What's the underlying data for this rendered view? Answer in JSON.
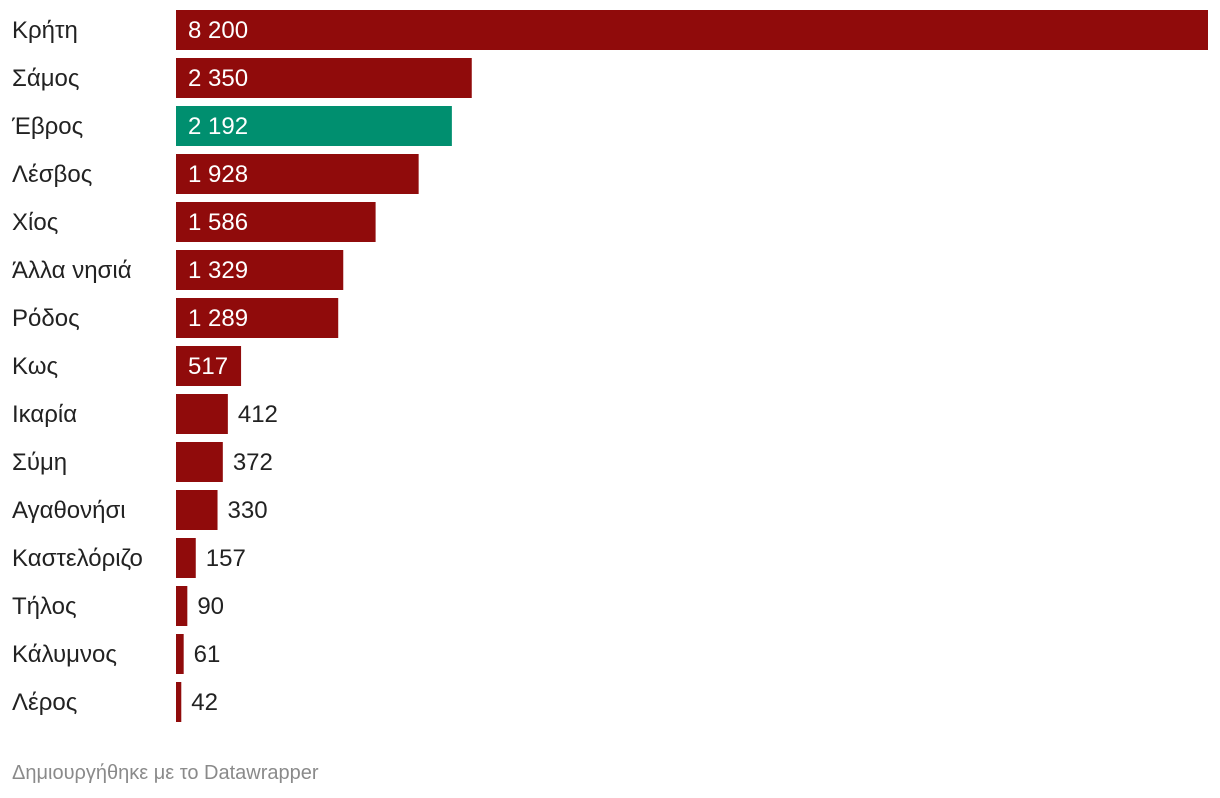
{
  "chart_data": {
    "type": "bar",
    "orientation": "horizontal",
    "categories": [
      "Κρήτη",
      "Σάμος",
      "Έβρος",
      "Λέσβος",
      "Χίος",
      "Άλλα νησιά",
      "Ρόδος",
      "Κως",
      "Ικαρία",
      "Σύμη",
      "Αγαθονήσι",
      "Καστελόριζο",
      "Τήλος",
      "Κάλυμνος",
      "Λέρος"
    ],
    "values": [
      8200,
      2350,
      2192,
      1928,
      1586,
      1329,
      1289,
      517,
      412,
      372,
      330,
      157,
      90,
      61,
      42
    ],
    "value_labels": [
      "8 200",
      "2 350",
      "2 192",
      "1 928",
      "1 586",
      "1 329",
      "1 289",
      "517",
      "412",
      "372",
      "330",
      "157",
      "90",
      "61",
      "42"
    ],
    "highlight_category": "Έβρος",
    "xlim": [
      0,
      8200
    ],
    "grid": false,
    "legend": "none"
  },
  "colors": {
    "bar": "#900b0b",
    "highlight": "#008f6f",
    "label_inside": "#ffffff",
    "label_outside": "#222222"
  },
  "footer": {
    "credit": "Δημιουργήθηκε με το Datawrapper"
  }
}
